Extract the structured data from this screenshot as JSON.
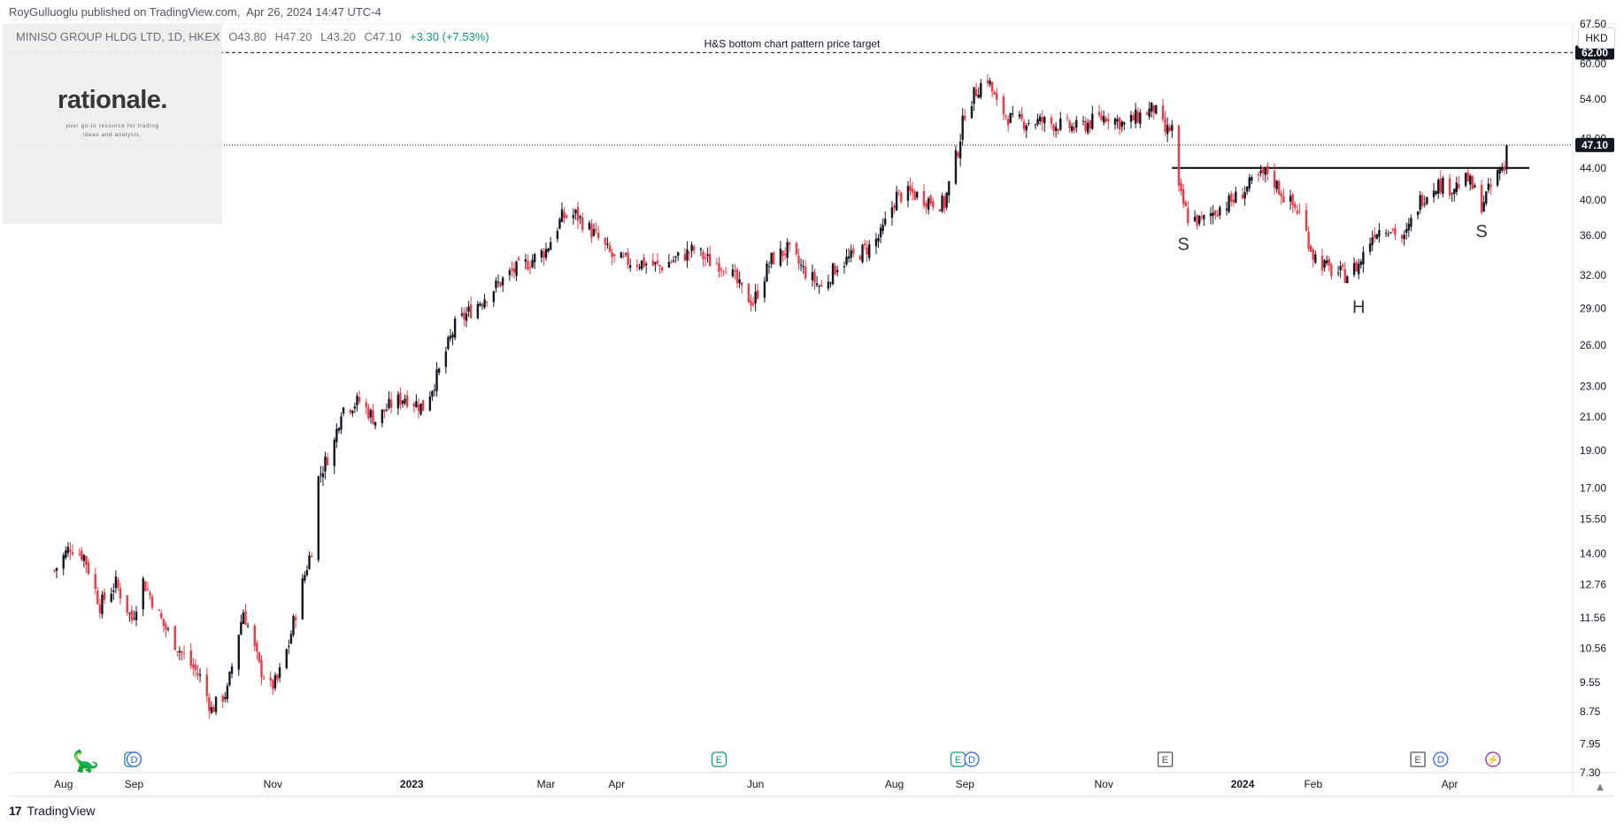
{
  "header": {
    "publisher": "RoyGulluoglu published on TradingView.com,",
    "timestamp": "Apr 26, 2024 14:47 UTC-4"
  },
  "symbol": {
    "name": "MINISO GROUP HLDG LTD, 1D, HKEX",
    "open": "O43.80",
    "high": "H47.20",
    "low": "L43.20",
    "close": "C47.10",
    "change": "+3.30 (+7.53%)"
  },
  "currency_label": "HKD",
  "watermark": {
    "title": "rationale.",
    "tagline_1": "your go-to resource for trading",
    "tagline_2": "ideas and analysis."
  },
  "footer": {
    "brand": "TradingView",
    "logo_mark": "17"
  },
  "colors": {
    "up": "#131722",
    "down": "#f23645",
    "price_badge": "#131722",
    "dividend_icon": "#2962ff",
    "earnings_icon": "#089981",
    "split_icon": "#9c27b0"
  },
  "events": [
    {
      "label": "E",
      "kind": "earnings",
      "date": "2022-08-31"
    },
    {
      "label": "D",
      "kind": "dividend",
      "date": "2022-09-01"
    },
    {
      "label": "E",
      "kind": "earnings",
      "date": "2023-05-16"
    },
    {
      "label": "E",
      "kind": "earnings",
      "date": "2023-08-29"
    },
    {
      "label": "D",
      "kind": "dividend",
      "date": "2023-09-04"
    },
    {
      "label": "E",
      "kind": "earnings-future",
      "date": "2023-11-28"
    },
    {
      "label": "E",
      "kind": "earnings-future",
      "date": "2024-03-18"
    },
    {
      "label": "D",
      "kind": "dividend",
      "date": "2024-03-28"
    },
    {
      "label": "⚡",
      "kind": "split",
      "date": "2024-04-20"
    }
  ],
  "chart_data": {
    "type": "candlestick",
    "title": "MINISO GROUP HLDG LTD, 1D, HKEX",
    "scale": "log",
    "ylim": [
      7.3,
      67.5
    ],
    "x_range": [
      "2022-07-08",
      "2024-05-25"
    ],
    "y_ticks": [
      7.3,
      7.95,
      8.75,
      9.55,
      10.56,
      11.56,
      12.76,
      14.0,
      15.5,
      17.0,
      19.0,
      21.0,
      23.0,
      26.0,
      29.0,
      32.0,
      36.0,
      40.0,
      44.0,
      48.0,
      54.0,
      60.0,
      67.5
    ],
    "y_tick_labels": [
      "7.30",
      "7.95",
      "8.75",
      "9.55",
      "10.56",
      "11.56",
      "12.76",
      "14.00",
      "15.50",
      "17.00",
      "19.00",
      "21.00",
      "23.00",
      "26.00",
      "29.00",
      "32.00",
      "36.00",
      "40.00",
      "44.00",
      "48.00",
      "54.00",
      "60.00",
      "67.50"
    ],
    "x_ticks": [
      {
        "label": "Aug",
        "date": "2022-08-01"
      },
      {
        "label": "Sep",
        "date": "2022-09-01"
      },
      {
        "label": "Nov",
        "date": "2022-11-01"
      },
      {
        "label": "2023",
        "date": "2023-01-01",
        "bold": true
      },
      {
        "label": "Mar",
        "date": "2023-03-01"
      },
      {
        "label": "Apr",
        "date": "2023-04-01"
      },
      {
        "label": "Jun",
        "date": "2023-06-01"
      },
      {
        "label": "Aug",
        "date": "2023-08-01"
      },
      {
        "label": "Sep",
        "date": "2023-09-01"
      },
      {
        "label": "Nov",
        "date": "2023-11-01"
      },
      {
        "label": "2024",
        "date": "2024-01-01",
        "bold": true
      },
      {
        "label": "Feb",
        "date": "2024-02-01"
      },
      {
        "label": "Apr",
        "date": "2024-04-01"
      }
    ],
    "price_badges": [
      {
        "value": 62.0,
        "label": "62.00"
      },
      {
        "value": 47.1,
        "label": "47.10"
      }
    ],
    "target_line": {
      "value": 62.0,
      "label": "H&S bottom chart pattern price target"
    },
    "last_price_line": 47.1,
    "neckline": {
      "value": 44.0,
      "from": "2023-12-01",
      "to": "2024-05-06"
    },
    "pattern_labels": [
      {
        "text": "S",
        "date": "2023-12-06",
        "value": 34.5
      },
      {
        "text": "H",
        "date": "2024-02-21",
        "value": 28.6
      },
      {
        "text": "S",
        "date": "2024-04-15",
        "value": 35.8
      }
    ],
    "anchors": [
      [
        "2022-07-28",
        13.3
      ],
      [
        "2022-08-04",
        14.3
      ],
      [
        "2022-08-10",
        13.9
      ],
      [
        "2022-08-17",
        12.0
      ],
      [
        "2022-08-24",
        12.8
      ],
      [
        "2022-08-31",
        11.5
      ],
      [
        "2022-09-05",
        12.9
      ],
      [
        "2022-09-14",
        11.3
      ],
      [
        "2022-09-22",
        10.4
      ],
      [
        "2022-09-30",
        9.7
      ],
      [
        "2022-10-05",
        8.8
      ],
      [
        "2022-10-12",
        9.3
      ],
      [
        "2022-10-19",
        11.8
      ],
      [
        "2022-10-26",
        10.0
      ],
      [
        "2022-10-31",
        9.4
      ],
      [
        "2022-11-03",
        9.6
      ],
      [
        "2022-11-08",
        10.7
      ],
      [
        "2022-11-14",
        12.8
      ],
      [
        "2022-11-18",
        14.2
      ],
      [
        "2022-11-21",
        17.5
      ],
      [
        "2022-11-28",
        19.5
      ],
      [
        "2022-12-01",
        21.5
      ],
      [
        "2022-12-09",
        22.0
      ],
      [
        "2022-12-16",
        20.8
      ],
      [
        "2022-12-23",
        21.8
      ],
      [
        "2022-12-29",
        22.3
      ],
      [
        "2023-01-06",
        21.6
      ],
      [
        "2023-01-13",
        24.0
      ],
      [
        "2023-01-20",
        27.5
      ],
      [
        "2023-02-03",
        30.2
      ],
      [
        "2023-02-14",
        32.3
      ],
      [
        "2023-02-21",
        33.2
      ],
      [
        "2023-03-01",
        34.5
      ],
      [
        "2023-03-08",
        38.0
      ],
      [
        "2023-03-14",
        38.3
      ],
      [
        "2023-03-22",
        36.2
      ],
      [
        "2023-03-31",
        33.5
      ],
      [
        "2023-04-13",
        33.2
      ],
      [
        "2023-04-20",
        32.8
      ],
      [
        "2023-05-05",
        34.5
      ],
      [
        "2023-05-12",
        33.3
      ],
      [
        "2023-05-19",
        33.0
      ],
      [
        "2023-05-26",
        30.5
      ],
      [
        "2023-05-31",
        29.5
      ],
      [
        "2023-06-08",
        33.5
      ],
      [
        "2023-06-15",
        34.5
      ],
      [
        "2023-06-22",
        32.5
      ],
      [
        "2023-06-30",
        30.8
      ],
      [
        "2023-07-07",
        33.0
      ],
      [
        "2023-07-14",
        33.8
      ],
      [
        "2023-07-21",
        34.8
      ],
      [
        "2023-07-26",
        36.0
      ],
      [
        "2023-08-02",
        40.5
      ],
      [
        "2023-08-09",
        40.8
      ],
      [
        "2023-08-16",
        40.0
      ],
      [
        "2023-08-23",
        39.5
      ],
      [
        "2023-08-29",
        46.5
      ],
      [
        "2023-09-01",
        52.0
      ],
      [
        "2023-09-07",
        56.0
      ],
      [
        "2023-09-11",
        57.5
      ],
      [
        "2023-09-15",
        53.0
      ],
      [
        "2023-09-22",
        50.5
      ],
      [
        "2023-10-05",
        50.5
      ],
      [
        "2023-10-12",
        50.0
      ],
      [
        "2023-10-20",
        49.5
      ],
      [
        "2023-10-27",
        50.5
      ],
      [
        "2023-11-03",
        51.5
      ],
      [
        "2023-11-10",
        50.0
      ],
      [
        "2023-11-17",
        51.5
      ],
      [
        "2023-11-23",
        52.5
      ],
      [
        "2023-11-28",
        49.0
      ],
      [
        "2023-12-01",
        49.5
      ],
      [
        "2023-12-04",
        41.0
      ],
      [
        "2023-12-08",
        38.0
      ],
      [
        "2023-12-14",
        37.5
      ],
      [
        "2023-12-21",
        39.0
      ],
      [
        "2023-12-28",
        40.0
      ],
      [
        "2024-01-05",
        42.0
      ],
      [
        "2024-01-12",
        43.5
      ],
      [
        "2024-01-19",
        40.5
      ],
      [
        "2024-01-26",
        38.5
      ],
      [
        "2024-02-01",
        34.0
      ],
      [
        "2024-02-08",
        32.5
      ],
      [
        "2024-02-15",
        32.0
      ],
      [
        "2024-02-21",
        33.0
      ],
      [
        "2024-02-28",
        36.5
      ],
      [
        "2024-03-05",
        37.0
      ],
      [
        "2024-03-12",
        35.5
      ],
      [
        "2024-03-19",
        40.0
      ],
      [
        "2024-03-26",
        42.0
      ],
      [
        "2024-04-02",
        41.5
      ],
      [
        "2024-04-09",
        42.5
      ],
      [
        "2024-04-15",
        39.5
      ],
      [
        "2024-04-19",
        41.5
      ],
      [
        "2024-04-23",
        43.8
      ],
      [
        "2024-04-25",
        43.8
      ],
      [
        "2024-04-26",
        47.1
      ]
    ],
    "last_candle": {
      "date": "2024-04-26",
      "open": 43.8,
      "high": 47.2,
      "low": 43.2,
      "close": 47.1
    }
  }
}
